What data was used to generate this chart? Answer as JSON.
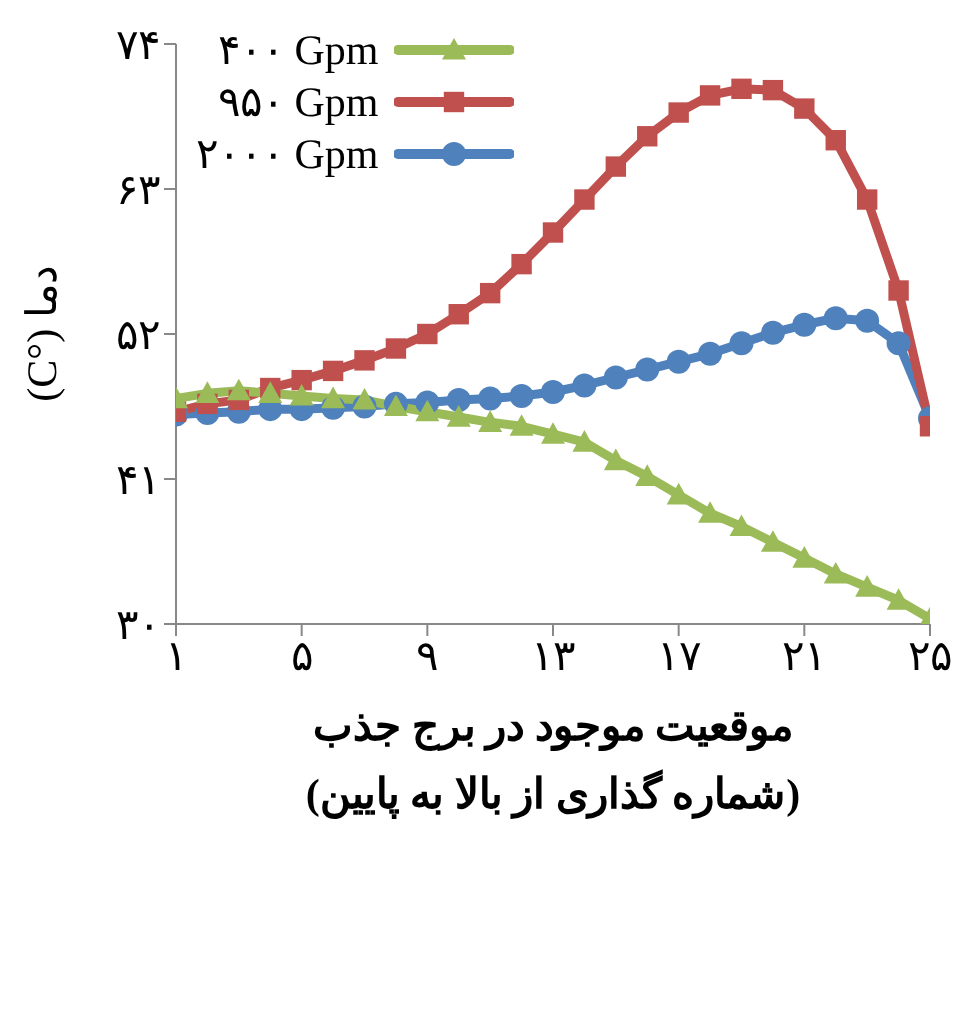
{
  "chart_data": {
    "type": "line",
    "xlabel": "موقعیت موجود در برج جذب\n(شماره گذاری از بالا به پایین)",
    "ylabel": "دما (°C)",
    "x": [
      1,
      2,
      3,
      4,
      5,
      6,
      7,
      8,
      9,
      10,
      11,
      12,
      13,
      14,
      15,
      16,
      17,
      18,
      19,
      20,
      21,
      22,
      23,
      24,
      25
    ],
    "xlim": [
      1,
      25
    ],
    "xticks": [
      {
        "value": 1,
        "label": "۱"
      },
      {
        "value": 5,
        "label": "۵"
      },
      {
        "value": 9,
        "label": "۹"
      },
      {
        "value": 13,
        "label": "۱۳"
      },
      {
        "value": 17,
        "label": "۱۷"
      },
      {
        "value": 21,
        "label": "۲۱"
      },
      {
        "value": 25,
        "label": "۲۵"
      }
    ],
    "ylim": [
      30,
      74
    ],
    "yticks": [
      {
        "value": 30,
        "label": "۳۰"
      },
      {
        "value": 41,
        "label": "۴۱"
      },
      {
        "value": 52,
        "label": "۵۲"
      },
      {
        "value": 63,
        "label": "۶۳"
      },
      {
        "value": 74,
        "label": "۷۴"
      }
    ],
    "grid": false,
    "legend": "top left",
    "line_style": "solid",
    "series": [
      {
        "name": "۴۰۰ Gpm",
        "color": "#9bbb59",
        "marker": "triangle",
        "values": [
          47.1,
          47.5,
          47.7,
          47.5,
          47.3,
          47.1,
          47.0,
          46.5,
          46.1,
          45.7,
          45.3,
          45.0,
          44.4,
          43.8,
          42.4,
          41.2,
          39.8,
          38.4,
          37.4,
          36.2,
          35.0,
          33.8,
          32.8,
          31.8,
          30.4
        ]
      },
      {
        "name": "۹۵۰ Gpm",
        "color": "#c0504d",
        "marker": "square",
        "values": [
          46.1,
          46.7,
          47.0,
          47.9,
          48.5,
          49.2,
          50.0,
          50.9,
          52.0,
          53.5,
          55.1,
          57.3,
          59.7,
          62.2,
          64.7,
          67.0,
          68.8,
          70.1,
          70.6,
          70.5,
          69.1,
          66.7,
          62.2,
          55.3,
          45.0
        ]
      },
      {
        "name": "۲۰۰۰ Gpm",
        "color": "#4f81bd",
        "marker": "circle",
        "values": [
          45.9,
          46.0,
          46.1,
          46.3,
          46.3,
          46.4,
          46.5,
          46.7,
          46.8,
          47.0,
          47.1,
          47.3,
          47.6,
          48.1,
          48.7,
          49.3,
          49.9,
          50.5,
          51.3,
          52.1,
          52.7,
          53.2,
          53.0,
          51.3,
          45.6
        ]
      }
    ]
  }
}
